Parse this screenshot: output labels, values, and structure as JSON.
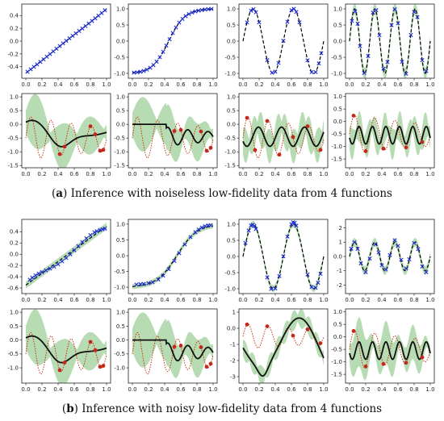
{
  "colors": {
    "band": "#9fd09a",
    "mean": "#111111",
    "target": "#cc2200",
    "obs_lf": "#1f2bd6",
    "obs_hf": "#c4281b",
    "axis": "#222222"
  },
  "captions": [
    {
      "label": "a",
      "text": "Inference with noiseless low-fidelity data from 4 functions"
    },
    {
      "label": "b",
      "text": "Inference with noisy low-fidelity data from 4 functions"
    }
  ],
  "chart_data": [
    {
      "type": "line",
      "panel": "a-lf-1",
      "func": "linear",
      "xlim": [
        -0.05,
        1.05
      ],
      "ylim": [
        -0.58,
        0.58
      ],
      "xticks": [
        0.0,
        0.2,
        0.4,
        0.6,
        0.8,
        1.0
      ],
      "yticks": [
        -0.4,
        -0.2,
        0.0,
        0.2,
        0.4
      ],
      "band_width": 0.01,
      "noise": 0.005,
      "markers": "lf",
      "x": [
        0.02,
        0.06,
        0.1,
        0.14,
        0.18,
        0.22,
        0.26,
        0.3,
        0.34,
        0.38,
        0.42,
        0.46,
        0.5,
        0.54,
        0.58,
        0.62,
        0.66,
        0.7,
        0.74,
        0.78,
        0.82,
        0.86,
        0.9,
        0.94,
        0.98
      ]
    },
    {
      "type": "line",
      "panel": "a-lf-2",
      "func": "sigmoid",
      "xlim": [
        -0.05,
        1.05
      ],
      "ylim": [
        -1.15,
        1.15
      ],
      "xticks": [
        0.0,
        0.2,
        0.4,
        0.6,
        0.8,
        1.0
      ],
      "yticks": [
        -1.0,
        -0.5,
        0.0,
        0.5,
        1.0
      ],
      "band_width": 0.02,
      "noise": 0.01,
      "markers": "lf",
      "x": [
        0.02,
        0.06,
        0.1,
        0.14,
        0.18,
        0.22,
        0.26,
        0.3,
        0.34,
        0.38,
        0.42,
        0.46,
        0.5,
        0.54,
        0.58,
        0.62,
        0.66,
        0.7,
        0.74,
        0.78,
        0.82,
        0.86,
        0.9,
        0.94,
        0.98
      ]
    },
    {
      "type": "line",
      "panel": "a-lf-3",
      "func": "sine2",
      "xlim": [
        -0.05,
        1.05
      ],
      "ylim": [
        -1.15,
        1.15
      ],
      "xticks": [
        0.0,
        0.2,
        0.4,
        0.6,
        0.8,
        1.0
      ],
      "yticks": [
        -1.0,
        -0.5,
        0.0,
        0.5,
        1.0
      ],
      "band_width": 0.02,
      "noise": 0.01,
      "markers": "lf",
      "x": [
        0.05,
        0.1,
        0.13,
        0.16,
        0.2,
        0.3,
        0.36,
        0.4,
        0.44,
        0.5,
        0.55,
        0.6,
        0.63,
        0.66,
        0.7,
        0.8,
        0.85,
        0.9,
        0.94,
        0.97
      ]
    },
    {
      "type": "line",
      "panel": "a-lf-4",
      "func": "sine4",
      "xlim": [
        -0.05,
        1.05
      ],
      "ylim": [
        -1.15,
        1.15
      ],
      "xticks": [
        0.0,
        0.2,
        0.4,
        0.6,
        0.8,
        1.0
      ],
      "yticks": [
        -1.0,
        -0.5,
        0.0,
        0.5,
        1.0
      ],
      "band_width": 0.18,
      "noise": 0.06,
      "markers": "lf",
      "x": [
        0.03,
        0.07,
        0.1,
        0.13,
        0.18,
        0.23,
        0.29,
        0.33,
        0.37,
        0.42,
        0.47,
        0.52,
        0.56,
        0.6,
        0.65,
        0.7,
        0.76,
        0.8,
        0.84,
        0.9,
        0.95
      ]
    },
    {
      "type": "line",
      "panel": "a-hf-1",
      "hf": "hf1",
      "xlim": [
        -0.05,
        1.05
      ],
      "ylim": [
        -1.58,
        1.12
      ],
      "xticks": [
        0.0,
        0.2,
        0.4,
        0.6,
        0.8,
        1.0
      ],
      "yticks": [
        -1.5,
        -1.0,
        -0.5,
        0.0,
        0.5,
        1.0
      ],
      "band_mode": "large",
      "markers": "hf",
      "x": [
        0.42,
        0.48,
        0.8,
        0.86,
        0.92,
        0.96
      ]
    },
    {
      "type": "line",
      "panel": "a-hf-2",
      "hf": "hf2",
      "xlim": [
        -0.05,
        1.05
      ],
      "ylim": [
        -1.58,
        1.12
      ],
      "xticks": [
        0.0,
        0.2,
        0.4,
        0.6,
        0.8,
        1.0
      ],
      "yticks": [
        -1.5,
        -1.0,
        -0.5,
        0.0,
        0.5,
        1.0
      ],
      "band_mode": "large",
      "markers": "hf",
      "x": [
        0.52,
        0.6,
        0.85,
        0.92,
        0.97
      ]
    },
    {
      "type": "line",
      "panel": "a-hf-3",
      "hf": "hf3",
      "xlim": [
        -0.05,
        1.05
      ],
      "ylim": [
        -1.58,
        1.12
      ],
      "xticks": [
        0.0,
        0.2,
        0.4,
        0.6,
        0.8,
        1.0
      ],
      "yticks": [
        -1.5,
        -1.0,
        -0.5,
        0.0,
        0.5,
        1.0
      ],
      "band_mode": "medium",
      "markers": "hf",
      "x": [
        0.05,
        0.15,
        0.3,
        0.45,
        0.62,
        0.8,
        0.96
      ]
    },
    {
      "type": "line",
      "panel": "a-hf-4",
      "hf": "hf4",
      "xlim": [
        -0.05,
        1.05
      ],
      "ylim": [
        -1.85,
        1.12
      ],
      "xticks": [
        0.0,
        0.2,
        0.4,
        0.6,
        0.8,
        1.0
      ],
      "yticks": [
        -1.5,
        -1.0,
        -0.5,
        0.0,
        0.5,
        1.0
      ],
      "band_mode": "medium",
      "markers": "hf",
      "x": [
        0.05,
        0.2,
        0.42,
        0.7,
        0.9
      ]
    },
    {
      "type": "line",
      "panel": "b-lf-1",
      "func": "linear_b",
      "xlim": [
        -0.05,
        1.05
      ],
      "ylim": [
        -0.7,
        0.62
      ],
      "xticks": [
        0.0,
        0.2,
        0.4,
        0.6,
        0.8,
        1.0
      ],
      "yticks": [
        -0.6,
        -0.4,
        -0.2,
        0.0,
        0.2,
        0.4
      ],
      "band_width": 0.06,
      "noise": 0.05,
      "markers": "lf",
      "x": [
        0.05,
        0.08,
        0.12,
        0.16,
        0.2,
        0.25,
        0.3,
        0.35,
        0.4,
        0.45,
        0.5,
        0.55,
        0.6,
        0.65,
        0.7,
        0.75,
        0.8,
        0.85,
        0.88,
        0.92,
        0.95,
        0.98
      ]
    },
    {
      "type": "line",
      "panel": "b-lf-2",
      "func": "sigmoid_b",
      "xlim": [
        -0.05,
        1.05
      ],
      "ylim": [
        -1.2,
        1.15
      ],
      "xticks": [
        0.0,
        0.2,
        0.4,
        0.6,
        0.8,
        1.0
      ],
      "yticks": [
        -1.0,
        -0.5,
        0.0,
        0.5,
        1.0
      ],
      "band_width": 0.08,
      "noise": 0.05,
      "markers": "lf",
      "x": [
        0.05,
        0.1,
        0.14,
        0.2,
        0.25,
        0.32,
        0.38,
        0.45,
        0.52,
        0.58,
        0.65,
        0.72,
        0.78,
        0.82,
        0.86,
        0.9,
        0.94,
        0.97
      ]
    },
    {
      "type": "line",
      "panel": "b-lf-3",
      "func": "sine2",
      "xlim": [
        -0.05,
        1.05
      ],
      "ylim": [
        -1.15,
        1.15
      ],
      "xticks": [
        0.0,
        0.2,
        0.4,
        0.6,
        0.8,
        1.0
      ],
      "yticks": [
        -1.0,
        -0.5,
        0.0,
        0.5,
        1.0
      ],
      "band_width": 0.1,
      "noise": 0.06,
      "markers": "lf",
      "x": [
        0.03,
        0.07,
        0.1,
        0.12,
        0.14,
        0.16,
        0.3,
        0.35,
        0.4,
        0.45,
        0.5,
        0.55,
        0.6,
        0.62,
        0.64,
        0.66,
        0.8,
        0.85,
        0.9,
        0.93,
        0.96
      ]
    },
    {
      "type": "line",
      "panel": "b-lf-4",
      "func": "sine4_b",
      "xlim": [
        -0.05,
        1.05
      ],
      "ylim": [
        -2.6,
        2.6
      ],
      "xticks": [
        0.0,
        0.2,
        0.4,
        0.6,
        0.8,
        1.0
      ],
      "yticks": [
        -2,
        -1,
        0,
        1,
        2
      ],
      "band_width": 0.3,
      "noise": 0.15,
      "markers": "lf",
      "x": [
        0.02,
        0.06,
        0.1,
        0.14,
        0.2,
        0.25,
        0.32,
        0.36,
        0.4,
        0.45,
        0.5,
        0.56,
        0.6,
        0.64,
        0.7,
        0.74,
        0.8,
        0.85,
        0.9,
        0.95
      ]
    },
    {
      "type": "line",
      "panel": "b-hf-1",
      "hf": "hf1",
      "xlim": [
        -0.05,
        1.05
      ],
      "ylim": [
        -1.55,
        1.12
      ],
      "xticks": [
        0.0,
        0.2,
        0.4,
        0.6,
        0.8,
        1.0
      ],
      "yticks": [
        -1.0,
        -0.5,
        0.0,
        0.5,
        1.0
      ],
      "band_mode": "large",
      "markers": "hf",
      "x": [
        0.42,
        0.48,
        0.8,
        0.86,
        0.92,
        0.96
      ]
    },
    {
      "type": "line",
      "panel": "b-hf-2",
      "hf": "hf2",
      "xlim": [
        -0.05,
        1.05
      ],
      "ylim": [
        -1.55,
        1.12
      ],
      "xticks": [
        0.0,
        0.2,
        0.4,
        0.6,
        0.8,
        1.0
      ],
      "yticks": [
        -1.0,
        -0.5,
        0.0,
        0.5,
        1.0
      ],
      "band_mode": "large",
      "markers": "hf",
      "x": [
        0.52,
        0.6,
        0.85,
        0.92,
        0.97
      ]
    },
    {
      "type": "line",
      "panel": "b-hf-3",
      "hf": "hf3b",
      "xlim": [
        -0.05,
        1.05
      ],
      "ylim": [
        -3.4,
        1.2
      ],
      "xticks": [
        0.0,
        0.2,
        0.4,
        0.6,
        0.8,
        1.0
      ],
      "yticks": [
        -3,
        -2,
        -1,
        0,
        1
      ],
      "band_mode": "medium",
      "markers": "hf",
      "x": [
        0.05,
        0.3,
        0.62,
        0.8,
        0.96
      ]
    },
    {
      "type": "line",
      "panel": "b-hf-4",
      "hf": "hf4",
      "xlim": [
        -0.05,
        1.05
      ],
      "ylim": [
        -1.85,
        1.12
      ],
      "xticks": [
        0.0,
        0.2,
        0.4,
        0.6,
        0.8,
        1.0
      ],
      "yticks": [
        -1.5,
        -1.0,
        -0.5,
        0.0,
        0.5,
        1.0
      ],
      "band_mode": "large",
      "markers": "hf",
      "x": [
        0.05,
        0.2,
        0.42,
        0.7,
        0.9
      ]
    }
  ]
}
